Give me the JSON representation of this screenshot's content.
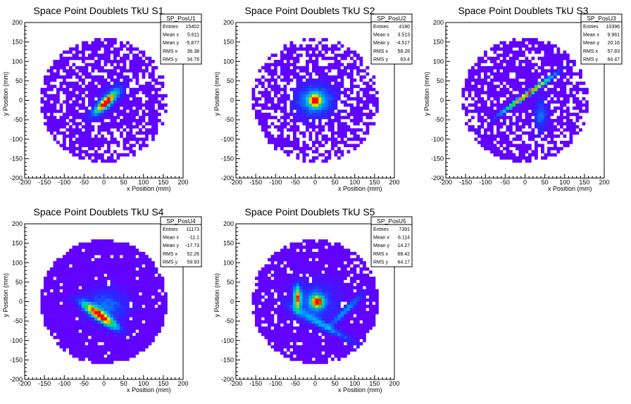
{
  "chart_data": [
    {
      "type": "heatmap",
      "title": "Space Point Doublets TkU S1",
      "xlabel": "x Position (mm)",
      "ylabel": "y Position (mm)",
      "xlim": [
        -200,
        200
      ],
      "ylim": [
        -200,
        200
      ],
      "xticks": [
        -200,
        -150,
        -100,
        -50,
        0,
        50,
        100,
        150,
        200
      ],
      "yticks": [
        -200,
        -150,
        -100,
        -50,
        0,
        50,
        100,
        150,
        200
      ],
      "detector_radius_mm": 160,
      "hotspots": [
        {
          "x": 5,
          "y": -5,
          "peak": "red",
          "elongation": "diagonal"
        }
      ],
      "stats": {
        "name": "SP_PosU1",
        "rows": [
          {
            "label": "Entries",
            "value": "15402"
          },
          {
            "label": "Mean x",
            "value": "5.611"
          },
          {
            "label": "Mean y",
            "value": "-5.877"
          },
          {
            "label": "RMS x",
            "value": "36.38"
          },
          {
            "label": "RMS y",
            "value": "34.78"
          }
        ]
      }
    },
    {
      "type": "heatmap",
      "title": "Space Point Doublets TkU S2",
      "xlabel": "x Position (mm)",
      "ylabel": "y Position (mm)",
      "xlim": [
        -200,
        200
      ],
      "ylim": [
        -200,
        200
      ],
      "xticks": [
        -200,
        -150,
        -100,
        -50,
        0,
        50,
        100,
        150,
        200
      ],
      "yticks": [
        -200,
        -150,
        -100,
        -50,
        0,
        50,
        100,
        150,
        200
      ],
      "detector_radius_mm": 160,
      "hotspots": [
        {
          "x": 0,
          "y": 0,
          "peak": "red",
          "elongation": "round"
        }
      ],
      "stats": {
        "name": "SP_PosU2",
        "rows": [
          {
            "label": "Entries",
            "value": "4180"
          },
          {
            "label": "Mean x",
            "value": "3.513"
          },
          {
            "label": "Mean y",
            "value": "-4.517"
          },
          {
            "label": "RMS x",
            "value": "58.28"
          },
          {
            "label": "RMS y",
            "value": "63.4"
          }
        ]
      }
    },
    {
      "type": "heatmap",
      "title": "Space Point Doublets TkU S3",
      "xlabel": "x Position (mm)",
      "ylabel": "y Position (mm)",
      "xlim": [
        -200,
        200
      ],
      "ylim": [
        -200,
        200
      ],
      "xticks": [
        -200,
        -150,
        -100,
        -50,
        0,
        50,
        100,
        150,
        200
      ],
      "yticks": [
        -200,
        -150,
        -100,
        -50,
        0,
        50,
        100,
        150,
        200
      ],
      "detector_radius_mm": 160,
      "hotspots": [
        {
          "x": 5,
          "y": 15,
          "peak": "red",
          "elongation": "diagonal-long"
        }
      ],
      "stats": {
        "name": "SP_PosU3",
        "rows": [
          {
            "label": "Entries",
            "value": "10396"
          },
          {
            "label": "Mean x",
            "value": "9.961"
          },
          {
            "label": "Mean y",
            "value": "20.16"
          },
          {
            "label": "RMS x",
            "value": "57.83"
          },
          {
            "label": "RMS y",
            "value": "64.47"
          }
        ]
      }
    },
    {
      "type": "heatmap",
      "title": "Space Point Doublets TkU S4",
      "xlabel": "x Position (mm)",
      "ylabel": "y Position (mm)",
      "xlim": [
        -200,
        200
      ],
      "ylim": [
        -200,
        200
      ],
      "xticks": [
        -200,
        -150,
        -100,
        -50,
        0,
        50,
        100,
        150,
        200
      ],
      "yticks": [
        -200,
        -150,
        -100,
        -50,
        0,
        50,
        100,
        150,
        200
      ],
      "detector_radius_mm": 160,
      "hotspots": [
        {
          "x": -10,
          "y": -35,
          "peak": "red",
          "elongation": "anti-diagonal"
        }
      ],
      "stats": {
        "name": "SP_PosU4",
        "rows": [
          {
            "label": "Entries",
            "value": "11173"
          },
          {
            "label": "Mean x",
            "value": "-11.1"
          },
          {
            "label": "Mean y",
            "value": "-17.73"
          },
          {
            "label": "RMS x",
            "value": "52.26"
          },
          {
            "label": "RMS y",
            "value": "59.93"
          }
        ]
      }
    },
    {
      "type": "heatmap",
      "title": "Space Point Doublets TkU S5",
      "xlabel": "x Position (mm)",
      "ylabel": "y Position (mm)",
      "xlim": [
        -200,
        200
      ],
      "ylim": [
        -200,
        200
      ],
      "xticks": [
        -200,
        -150,
        -100,
        -50,
        0,
        50,
        100,
        150,
        200
      ],
      "yticks": [
        -200,
        -150,
        -100,
        -50,
        0,
        50,
        100,
        150,
        200
      ],
      "detector_radius_mm": 160,
      "hotspots": [
        {
          "x": 5,
          "y": 0,
          "peak": "red",
          "elongation": "round"
        },
        {
          "x": -45,
          "y": 10,
          "peak": "red",
          "elongation": "vertical"
        }
      ],
      "stats": {
        "name": "SP_PosU5",
        "rows": [
          {
            "label": "Entries",
            "value": "7391"
          },
          {
            "label": "Mean x",
            "value": "6.114"
          },
          {
            "label": "Mean y",
            "value": "14.27"
          },
          {
            "label": "RMS x",
            "value": "68.42"
          },
          {
            "label": "RMS y",
            "value": "64.17"
          }
        ]
      }
    }
  ]
}
